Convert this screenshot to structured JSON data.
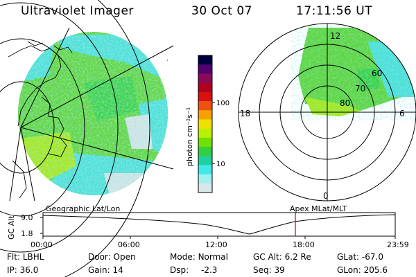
{
  "header": {
    "instrument": "Ultraviolet Imager",
    "date": "30 Oct 07",
    "time": "17:11:56 UT"
  },
  "colorbar": {
    "unit_label": "photon cm⁻²s⁻¹",
    "ticks": [
      "100",
      "10"
    ],
    "colors": [
      "#000040",
      "#500070",
      "#8a0a5a",
      "#b00020",
      "#d81010",
      "#f05010",
      "#f8a000",
      "#f0e000",
      "#b8f000",
      "#70e000",
      "#30d040",
      "#20d0a0",
      "#40e8e8",
      "#a0f0f0",
      "#d8e8e8"
    ]
  },
  "left_panel": {
    "title": "Geographic Lat/Lon"
  },
  "right_panel": {
    "title": "Apex MLat/MLT",
    "mlt_labels": {
      "top": "12",
      "left": "18",
      "right": "6",
      "bottom": "0"
    },
    "mlat_labels": [
      "60",
      "70",
      "80"
    ]
  },
  "altitude_plot": {
    "ylabel": "GC Alt",
    "ytick_top": "9.0",
    "ytick_bottom": "1.8",
    "xticks": [
      "00:00",
      "06:00",
      "12:00",
      "18:00",
      "23:59"
    ],
    "marker_color": "#c00000"
  },
  "status": {
    "flt_label": "Flt:",
    "flt_value": "LBHL",
    "ip_label": "IP:",
    "ip_value": "36.0",
    "door_label": "Door:",
    "door_value": "Open",
    "gain_label": "Gain:",
    "gain_value": "14",
    "mode_label": "Mode:",
    "mode_value": "Normal",
    "dsp_label": "Dsp:",
    "dsp_value": "-2.3",
    "gcalt_label": "GC Alt:",
    "gcalt_value": "6.2 Re",
    "seq_label": "Seq:",
    "seq_value": "39",
    "glat_label": "GLat:",
    "glat_value": "-67.0",
    "glon_label": "GLon:",
    "glon_value": "205.6"
  }
}
